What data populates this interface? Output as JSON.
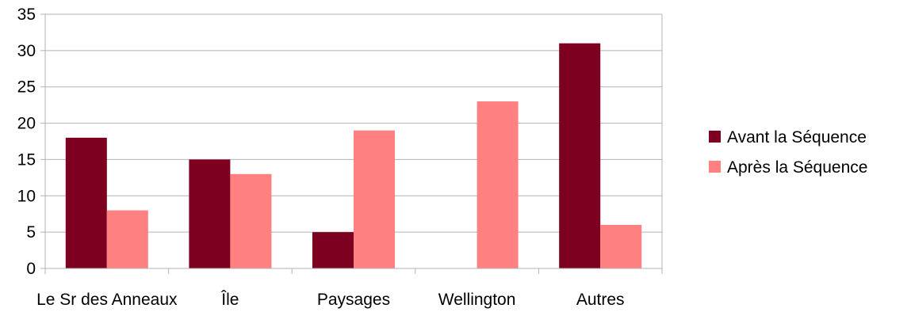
{
  "chart_data": {
    "type": "bar",
    "title": "",
    "xlabel": "",
    "ylabel": "",
    "categories": [
      "Le Sr des Anneaux",
      "Île",
      "Paysages",
      "Wellington",
      "Autres"
    ],
    "series": [
      {
        "name": "Avant la Séquence",
        "color": "#7e0021",
        "values": [
          18,
          15,
          5,
          0,
          31
        ]
      },
      {
        "name": "Après la Séquence",
        "color": "#ff8080",
        "values": [
          8,
          13,
          19,
          23,
          6
        ]
      }
    ],
    "ylim": [
      0,
      35
    ],
    "yticks": [
      0,
      5,
      10,
      15,
      20,
      25,
      30,
      35
    ],
    "grid": true,
    "legend_position": "right"
  }
}
